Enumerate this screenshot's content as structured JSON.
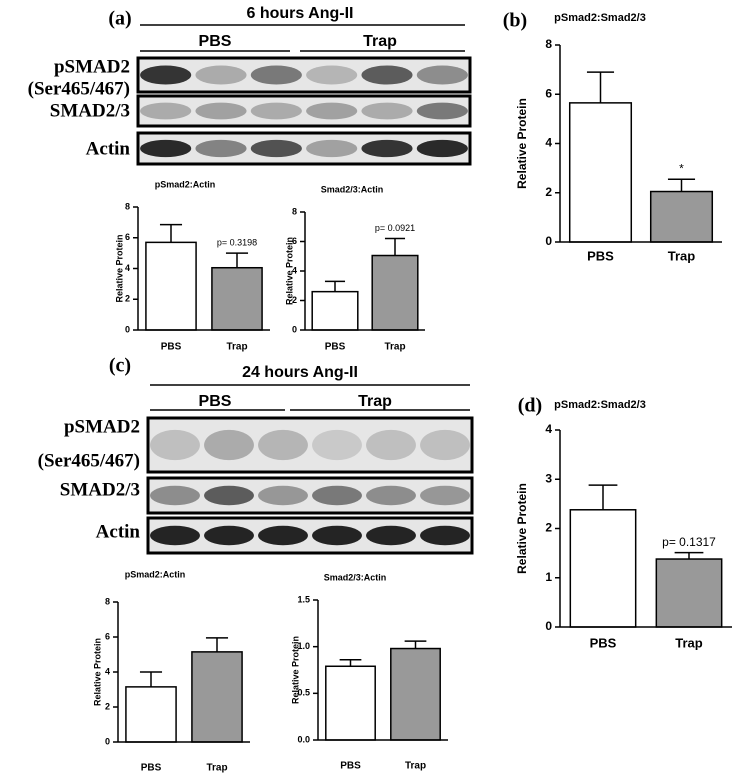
{
  "chart_data": [
    {
      "type": "bar",
      "title": "pSmad2:Actin",
      "ylabel": "Relative Protein",
      "categories": [
        "PBS",
        "Trap"
      ],
      "values": [
        5.7,
        4.05
      ],
      "errors": [
        1.15,
        0.95
      ],
      "colors": [
        "#ffffff",
        "#999999"
      ],
      "ylim": [
        0,
        8
      ],
      "yticks": [
        0,
        2,
        4,
        6,
        8
      ],
      "annotation": "p= 0.3198"
    },
    {
      "type": "bar",
      "title": "Smad2/3:Actin",
      "ylabel": "Relative Protein",
      "categories": [
        "PBS",
        "Trap"
      ],
      "values": [
        2.6,
        5.05
      ],
      "errors": [
        0.7,
        1.15
      ],
      "colors": [
        "#ffffff",
        "#999999"
      ],
      "ylim": [
        0,
        8
      ],
      "yticks": [
        0,
        2,
        4,
        6,
        8
      ],
      "annotation": "p= 0.0921"
    },
    {
      "type": "bar",
      "title": "pSmad2:Smad2/3",
      "ylabel": "Relative Protein",
      "categories": [
        "PBS",
        "Trap"
      ],
      "values": [
        5.65,
        2.05
      ],
      "errors": [
        1.25,
        0.5
      ],
      "colors": [
        "#ffffff",
        "#999999"
      ],
      "ylim": [
        0,
        8
      ],
      "yticks": [
        0,
        2,
        4,
        6,
        8
      ],
      "annotation": "*"
    },
    {
      "type": "bar",
      "title": "pSmad2:Actin",
      "ylabel": "Relative Protein",
      "categories": [
        "PBS",
        "Trap"
      ],
      "values": [
        3.15,
        5.15
      ],
      "errors": [
        0.85,
        0.8
      ],
      "colors": [
        "#ffffff",
        "#999999"
      ],
      "ylim": [
        0,
        8
      ],
      "yticks": [
        0,
        2,
        4,
        6,
        8
      ]
    },
    {
      "type": "bar",
      "title": "Smad2/3:Actin",
      "ylabel": "Relative Protein",
      "categories": [
        "PBS",
        "Trap"
      ],
      "values": [
        0.79,
        0.98
      ],
      "errors": [
        0.07,
        0.08
      ],
      "colors": [
        "#ffffff",
        "#999999"
      ],
      "ylim": [
        0,
        1.5
      ],
      "yticks": [
        {
          "value": 0,
          "label": "0.0"
        },
        0.5,
        {
          "value": 1,
          "label": "1.0"
        },
        1.5
      ]
    },
    {
      "type": "bar",
      "title": "pSmad2:Smad2/3",
      "ylabel": "Relative Protein",
      "categories": [
        "PBS",
        "Trap"
      ],
      "values": [
        2.38,
        1.38
      ],
      "errors": [
        0.5,
        0.13
      ],
      "colors": [
        "#ffffff",
        "#999999"
      ],
      "ylim": [
        0,
        4
      ],
      "yticks": [
        0,
        1,
        2,
        3,
        4
      ],
      "annotation": "p= 0.1317"
    }
  ],
  "panels": [
    "(a)",
    "(b)",
    "(c)",
    "(d)"
  ],
  "blots": [
    {
      "header": "6 hours Ang-II",
      "groups": [
        "PBS",
        "Trap"
      ],
      "rows": [
        [
          "pSMAD2",
          "(Ser465/467)"
        ],
        [
          "SMAD2/3"
        ],
        [
          "Actin"
        ]
      ]
    },
    {
      "header": "24 hours Ang-II",
      "groups": [
        "PBS",
        "Trap"
      ],
      "rows": [
        [
          "pSMAD2",
          "(Ser465/467)"
        ],
        [
          "SMAD2/3"
        ],
        [
          "Actin"
        ]
      ]
    }
  ]
}
